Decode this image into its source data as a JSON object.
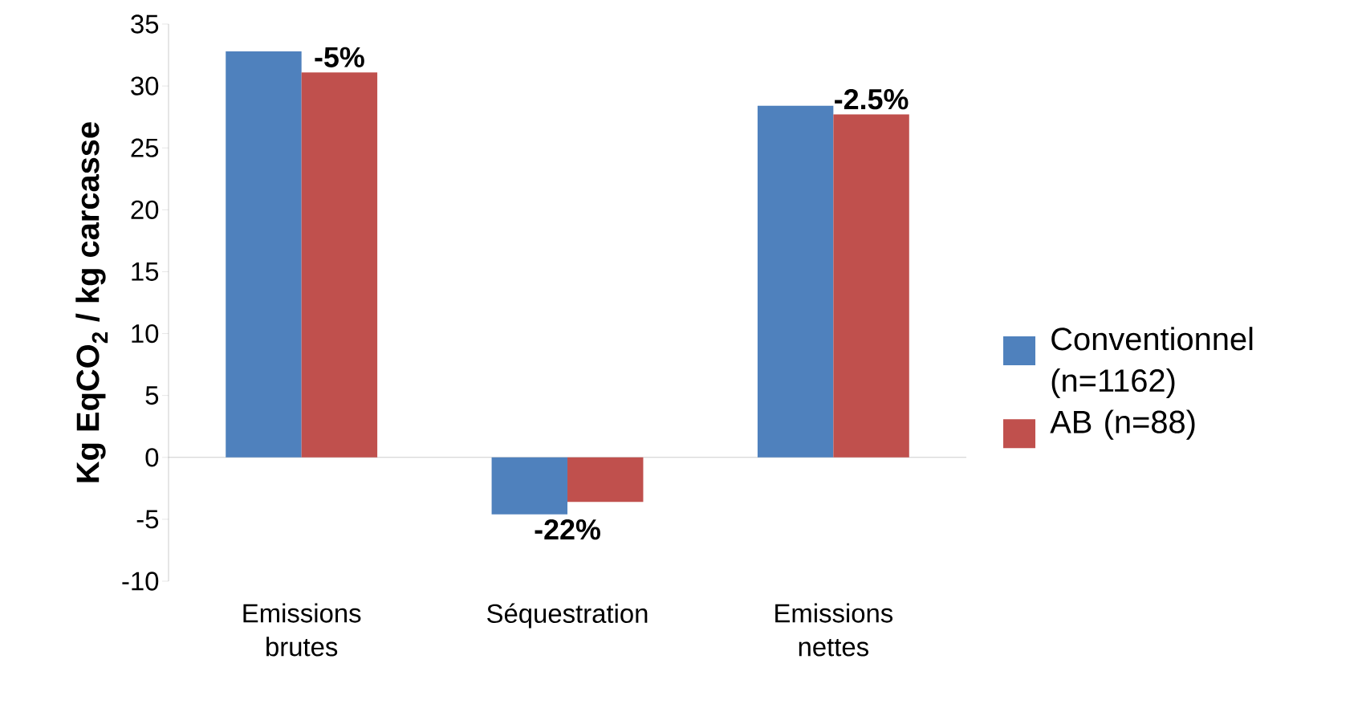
{
  "chart_data": {
    "type": "bar",
    "ylabel": "Kg EqCO$_{2}$ / kg carcasse",
    "categories": [
      "Emissions brutes",
      "Séquestration",
      "Emissions nettes"
    ],
    "series": [
      {
        "name": "Conventionnel (n=1162)",
        "color": "#4f81bd",
        "values": [
          32.8,
          -4.6,
          28.4
        ]
      },
      {
        "name": "AB (n=88)",
        "color": "#c0504d",
        "values": [
          31.1,
          -3.6,
          27.7
        ]
      }
    ],
    "ylim": [
      -10,
      35
    ],
    "yticks": [
      -10,
      -5,
      0,
      5,
      10,
      15,
      20,
      25,
      30,
      35
    ],
    "annotations": [
      {
        "text": "-5%",
        "x": "Emissions brutes",
        "y": 31.1
      },
      {
        "text": "-22%",
        "x": "Séquestration",
        "y": -4.6
      },
      {
        "text": "-2.5%",
        "x": "Emissions nettes",
        "y": 27.7
      }
    ],
    "legend": "right"
  }
}
